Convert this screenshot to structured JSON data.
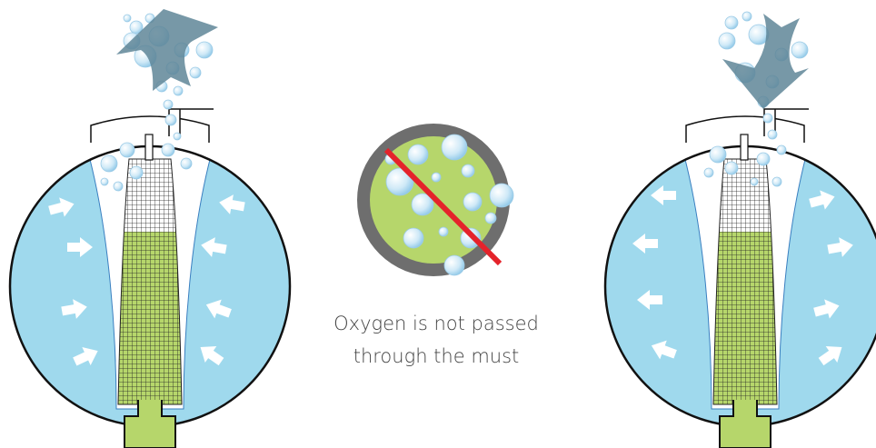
{
  "caption": {
    "lines": [
      "Oxygen is not passed",
      "through the must"
    ]
  }
}
